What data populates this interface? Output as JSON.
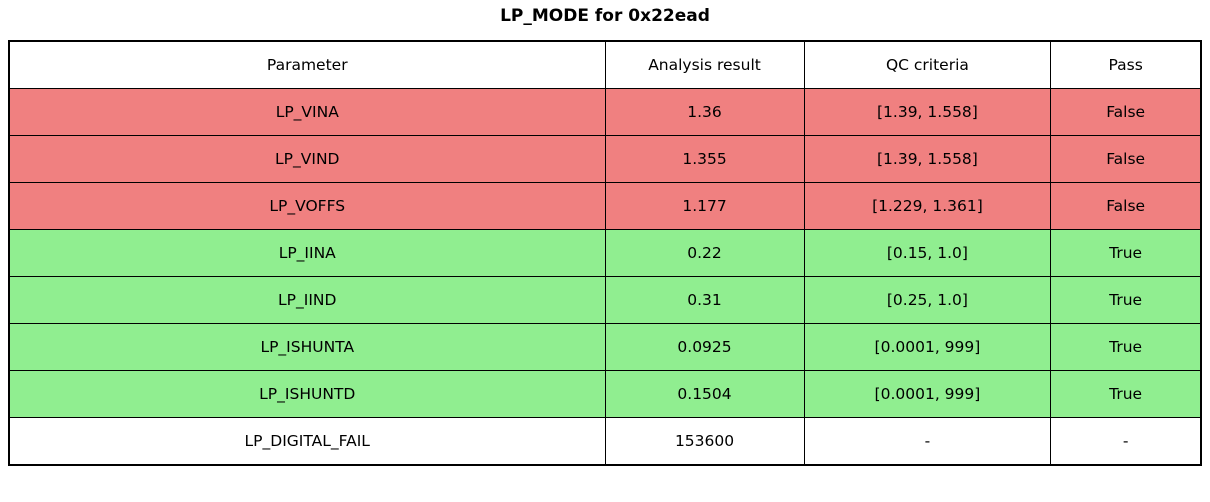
{
  "title": "LP_MODE for 0x22ead",
  "colors": {
    "fail": "#f08080",
    "pass": "#90ee90",
    "neutral": "#ffffff",
    "border": "#000000"
  },
  "table": {
    "headers": [
      "Parameter",
      "Analysis result",
      "QC criteria",
      "Pass"
    ],
    "rows": [
      {
        "parameter": "LP_VINA",
        "result": "1.36",
        "qc": "[1.39, 1.558]",
        "pass": "False",
        "status": "fail"
      },
      {
        "parameter": "LP_VIND",
        "result": "1.355",
        "qc": "[1.39, 1.558]",
        "pass": "False",
        "status": "fail"
      },
      {
        "parameter": "LP_VOFFS",
        "result": "1.177",
        "qc": "[1.229, 1.361]",
        "pass": "False",
        "status": "fail"
      },
      {
        "parameter": "LP_IINA",
        "result": "0.22",
        "qc": "[0.15, 1.0]",
        "pass": "True",
        "status": "pass"
      },
      {
        "parameter": "LP_IIND",
        "result": "0.31",
        "qc": "[0.25, 1.0]",
        "pass": "True",
        "status": "pass"
      },
      {
        "parameter": "LP_ISHUNTA",
        "result": "0.0925",
        "qc": "[0.0001, 999]",
        "pass": "True",
        "status": "pass"
      },
      {
        "parameter": "LP_ISHUNTD",
        "result": "0.1504",
        "qc": "[0.0001, 999]",
        "pass": "True",
        "status": "pass"
      },
      {
        "parameter": "LP_DIGITAL_FAIL",
        "result": "153600",
        "qc": "-",
        "pass": "-",
        "status": "neutral"
      }
    ]
  },
  "chart_data": {
    "type": "table",
    "title": "LP_MODE for 0x22ead",
    "columns": [
      "Parameter",
      "Analysis result",
      "QC criteria",
      "Pass"
    ],
    "rows": [
      [
        "LP_VINA",
        1.36,
        "[1.39, 1.558]",
        "False"
      ],
      [
        "LP_VIND",
        1.355,
        "[1.39, 1.558]",
        "False"
      ],
      [
        "LP_VOFFS",
        1.177,
        "[1.229, 1.361]",
        "False"
      ],
      [
        "LP_IINA",
        0.22,
        "[0.15, 1.0]",
        "True"
      ],
      [
        "LP_IIND",
        0.31,
        "[0.25, 1.0]",
        "True"
      ],
      [
        "LP_ISHUNTA",
        0.0925,
        "[0.0001, 999]",
        "True"
      ],
      [
        "LP_ISHUNTD",
        0.1504,
        "[0.0001, 999]",
        "True"
      ],
      [
        "LP_DIGITAL_FAIL",
        153600,
        "-",
        "-"
      ]
    ],
    "row_colors": [
      "fail",
      "fail",
      "fail",
      "pass",
      "pass",
      "pass",
      "pass",
      "neutral"
    ],
    "layout": {
      "header_background": "#ffffff",
      "fail_background": "#f08080",
      "pass_background": "#90ee90",
      "grid": true
    }
  }
}
